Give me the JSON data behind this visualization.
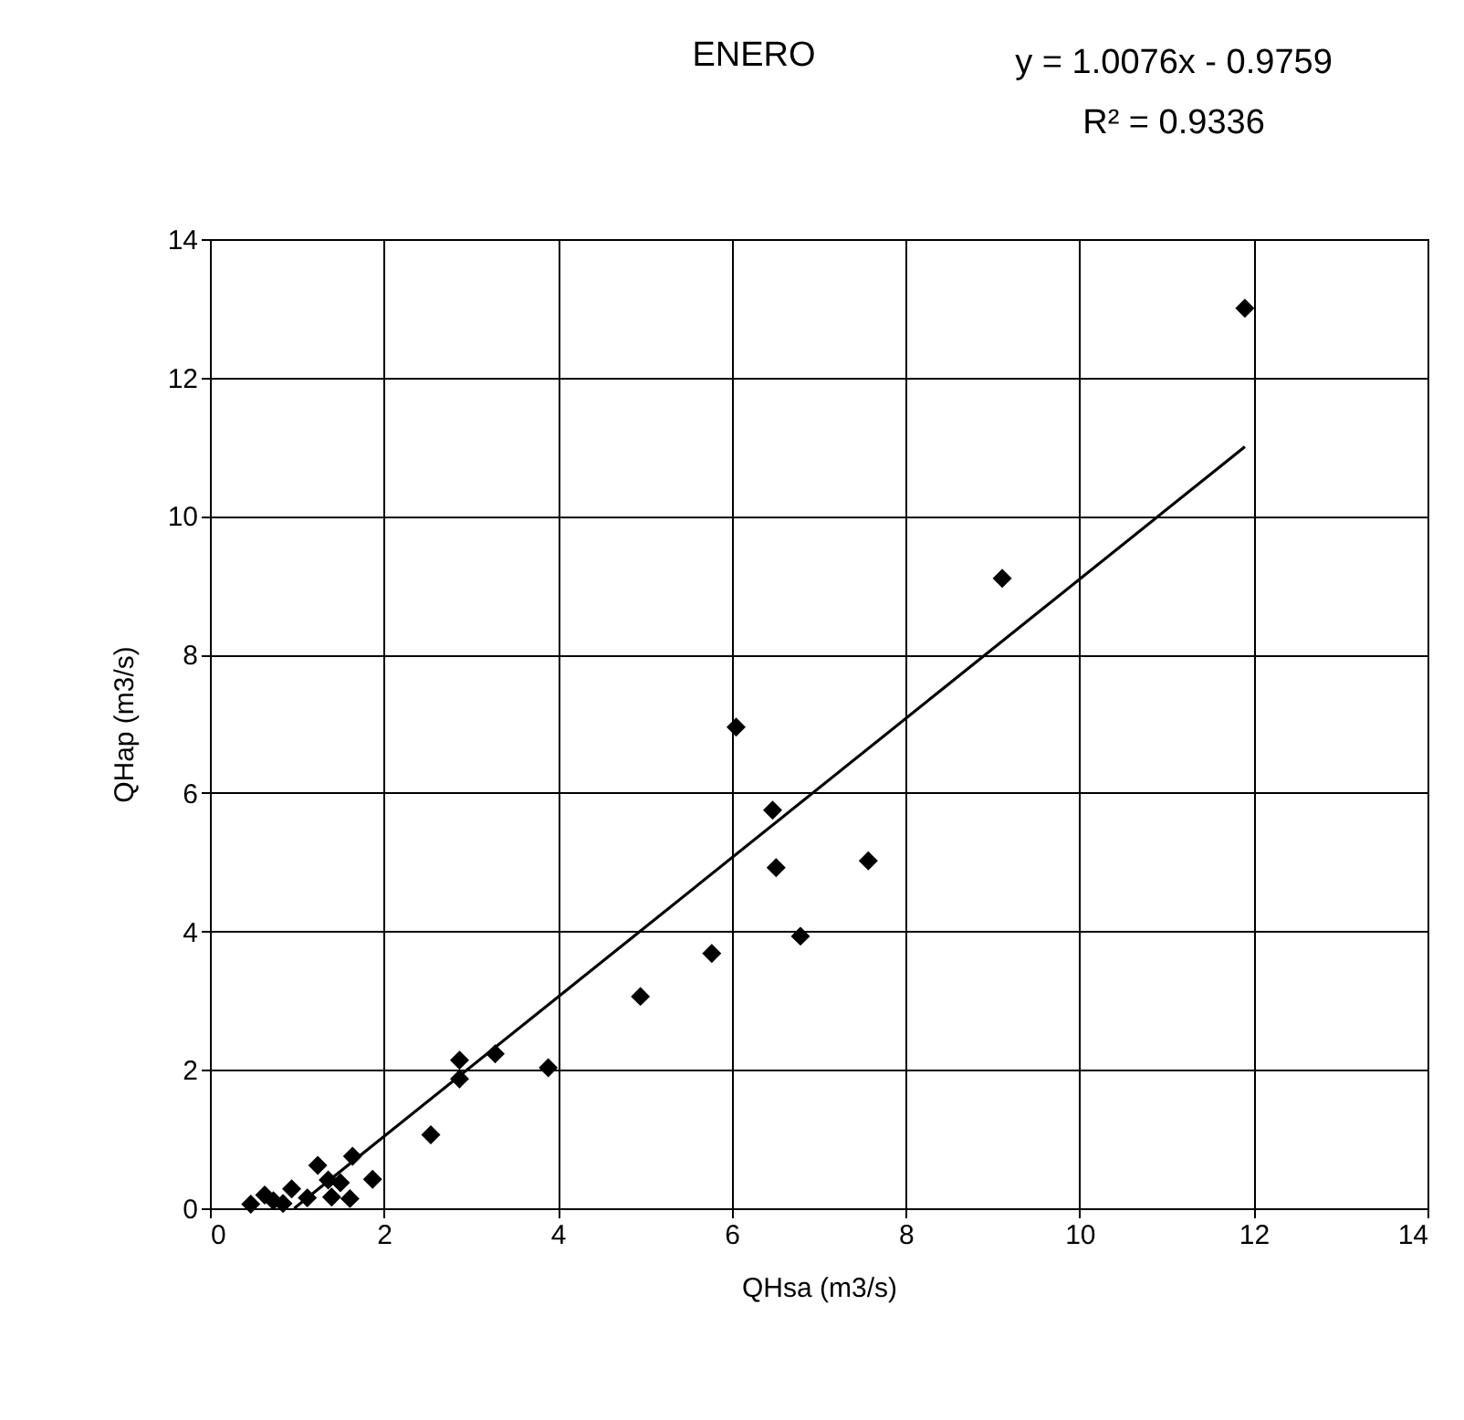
{
  "chart_data": {
    "type": "scatter",
    "title": "ENERO",
    "xlabel": "QHsa (m3/s)",
    "ylabel": "QHap (m3/s)",
    "annotations": [
      "y = 1.0076x - 0.9759",
      "R² = 0.9336"
    ],
    "xlim": [
      0,
      14
    ],
    "xticks": [
      0,
      2,
      4,
      6,
      8,
      10,
      12,
      14
    ],
    "ylim": [
      0,
      14
    ],
    "yticks": [
      0,
      2,
      4,
      6,
      8,
      10,
      12,
      14
    ],
    "grid": true,
    "series": [
      {
        "color": "#000000",
        "marker": "diamond",
        "x": [
          11.9,
          9.11,
          6.05,
          6.47,
          6.51,
          7.57,
          6.79,
          5.77,
          4.95,
          3.89,
          3.28,
          2.87,
          2.87,
          2.54,
          1.87,
          1.64,
          1.24,
          1.61,
          1.5,
          1.36,
          1.4,
          1.12,
          0.94,
          0.84,
          0.73,
          0.63,
          0.52,
          0.47
        ],
        "values": [
          13.0,
          9.1,
          6.95,
          5.75,
          4.92,
          5.02,
          3.93,
          3.68,
          3.06,
          2.03,
          2.23,
          2.14,
          1.87,
          1.06,
          0.42,
          0.75,
          0.62,
          0.14,
          0.37,
          0.41,
          0.16,
          0.15,
          0.28,
          0.07,
          0.11,
          0.19,
          null,
          0.06
        ]
      },
      {
        "type": "line",
        "color": "#000000",
        "x": [
          0.97,
          11.9
        ],
        "values": [
          0,
          11.0
        ]
      }
    ]
  }
}
